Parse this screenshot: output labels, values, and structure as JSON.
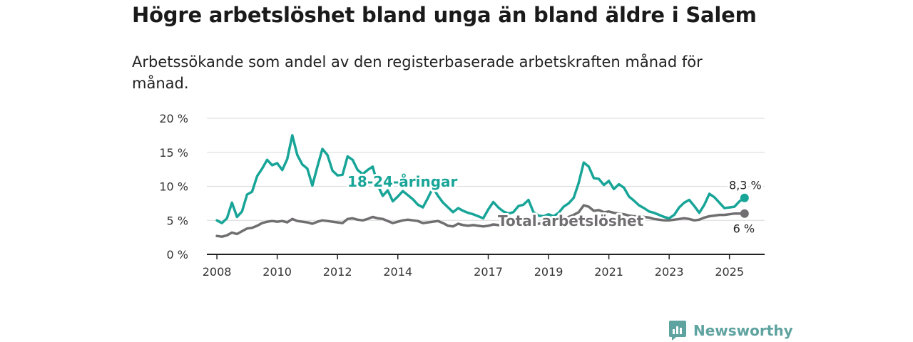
{
  "title": "Högre arbetslöshet bland unga än bland äldre i Salem",
  "subtitle": "Arbetssökande som andel av den registerbaserade arbetskraften månad för månad.",
  "brand": {
    "name": "Newsworthy",
    "icon": "newsworthy-logo-icon",
    "color": "#5fa3a0"
  },
  "chart_data": {
    "type": "line",
    "y_ticks": [
      "0 %",
      "5 %",
      "10 %",
      "15 %",
      "20 %"
    ],
    "ylim": [
      0,
      20
    ],
    "x_ticks": [
      "2008",
      "2010",
      "2012",
      "2014",
      "2017",
      "2019",
      "2021",
      "2023",
      "2025"
    ],
    "xlim": [
      "2007-09",
      "2026-03"
    ],
    "grid": true,
    "series": [
      {
        "name": "18-24-åringar",
        "color": "#18a598",
        "end_label": "8,3 %",
        "x": [
          "2008-01",
          "2008-03",
          "2008-05",
          "2008-07",
          "2008-09",
          "2008-11",
          "2009-01",
          "2009-03",
          "2009-05",
          "2009-07",
          "2009-09",
          "2009-11",
          "2010-01",
          "2010-03",
          "2010-05",
          "2010-07",
          "2010-09",
          "2010-11",
          "2011-01",
          "2011-03",
          "2011-05",
          "2011-07",
          "2011-09",
          "2011-11",
          "2012-01",
          "2012-03",
          "2012-05",
          "2012-07",
          "2012-09",
          "2012-11",
          "2013-01",
          "2013-03",
          "2013-05",
          "2013-07",
          "2013-09",
          "2013-11",
          "2014-01",
          "2014-03",
          "2014-05",
          "2014-07",
          "2014-09",
          "2014-11",
          "2015-01",
          "2015-03",
          "2015-05",
          "2015-07",
          "2015-09",
          "2015-11",
          "2016-01",
          "2016-03",
          "2016-05",
          "2016-07",
          "2016-09",
          "2016-11",
          "2017-01",
          "2017-03",
          "2017-05",
          "2017-07",
          "2017-09",
          "2017-11",
          "2018-01",
          "2018-03",
          "2018-05",
          "2018-07",
          "2018-09",
          "2018-11",
          "2019-01",
          "2019-03",
          "2019-05",
          "2019-07",
          "2019-09",
          "2019-11",
          "2020-01",
          "2020-03",
          "2020-05",
          "2020-07",
          "2020-09",
          "2020-11",
          "2021-01",
          "2021-03",
          "2021-05",
          "2021-07",
          "2021-09",
          "2021-11",
          "2022-01",
          "2022-03",
          "2022-05",
          "2022-07",
          "2022-09",
          "2022-11",
          "2023-01",
          "2023-03",
          "2023-05",
          "2023-07",
          "2023-09",
          "2023-11",
          "2024-01",
          "2024-03",
          "2024-05",
          "2024-07",
          "2024-09",
          "2024-11",
          "2025-01",
          "2025-03",
          "2025-05",
          "2025-07"
        ],
        "y": [
          5.0,
          4.6,
          5.3,
          7.6,
          5.5,
          6.3,
          8.8,
          9.2,
          11.5,
          12.6,
          13.9,
          13.1,
          13.4,
          12.4,
          14.0,
          17.5,
          14.6,
          13.2,
          12.6,
          10.1,
          12.9,
          15.5,
          14.6,
          12.3,
          11.6,
          11.7,
          14.4,
          13.9,
          12.4,
          11.8,
          12.4,
          12.9,
          10.2,
          8.6,
          9.4,
          7.8,
          8.5,
          9.3,
          8.7,
          8.1,
          7.3,
          6.9,
          8.3,
          9.8,
          8.6,
          7.6,
          6.9,
          6.2,
          6.8,
          6.4,
          6.1,
          5.9,
          5.6,
          5.3,
          6.6,
          7.7,
          6.9,
          6.3,
          6.0,
          6.2,
          7.1,
          7.3,
          8.0,
          6.2,
          5.7,
          5.6,
          5.9,
          5.6,
          6.1,
          7.0,
          7.5,
          8.3,
          10.5,
          13.5,
          12.9,
          11.2,
          11.1,
          10.2,
          10.8,
          9.6,
          10.3,
          9.8,
          8.5,
          7.9,
          7.2,
          6.8,
          6.3,
          6.1,
          5.8,
          5.5,
          5.3,
          5.8,
          6.9,
          7.6,
          8.0,
          7.1,
          6.1,
          7.3,
          8.9,
          8.4,
          7.6,
          6.8,
          6.9,
          7.0,
          7.8,
          8.3
        ]
      },
      {
        "name": "Total arbetslöshet",
        "color": "#706e70",
        "end_label": "6 %",
        "x": [
          "2008-01",
          "2008-03",
          "2008-05",
          "2008-07",
          "2008-09",
          "2008-11",
          "2009-01",
          "2009-03",
          "2009-05",
          "2009-07",
          "2009-09",
          "2009-11",
          "2010-01",
          "2010-03",
          "2010-05",
          "2010-07",
          "2010-09",
          "2010-11",
          "2011-01",
          "2011-03",
          "2011-05",
          "2011-07",
          "2011-09",
          "2011-11",
          "2012-01",
          "2012-03",
          "2012-05",
          "2012-07",
          "2012-09",
          "2012-11",
          "2013-01",
          "2013-03",
          "2013-05",
          "2013-07",
          "2013-09",
          "2013-11",
          "2014-01",
          "2014-03",
          "2014-05",
          "2014-07",
          "2014-09",
          "2014-11",
          "2015-01",
          "2015-03",
          "2015-05",
          "2015-07",
          "2015-09",
          "2015-11",
          "2016-01",
          "2016-03",
          "2016-05",
          "2016-07",
          "2016-09",
          "2016-11",
          "2017-01",
          "2017-03",
          "2017-05",
          "2017-07",
          "2017-09",
          "2017-11",
          "2018-01",
          "2018-03",
          "2018-05",
          "2018-07",
          "2018-09",
          "2018-11",
          "2019-01",
          "2019-03",
          "2019-05",
          "2019-07",
          "2019-09",
          "2019-11",
          "2020-01",
          "2020-03",
          "2020-05",
          "2020-07",
          "2020-09",
          "2020-11",
          "2021-01",
          "2021-03",
          "2021-05",
          "2021-07",
          "2021-09",
          "2021-11",
          "2022-01",
          "2022-03",
          "2022-05",
          "2022-07",
          "2022-09",
          "2022-11",
          "2023-01",
          "2023-03",
          "2023-05",
          "2023-07",
          "2023-09",
          "2023-11",
          "2024-01",
          "2024-03",
          "2024-05",
          "2024-07",
          "2024-09",
          "2024-11",
          "2025-01",
          "2025-03",
          "2025-05",
          "2025-07"
        ],
        "y": [
          2.7,
          2.6,
          2.8,
          3.2,
          3.0,
          3.4,
          3.8,
          3.9,
          4.2,
          4.6,
          4.8,
          4.9,
          4.8,
          4.9,
          4.7,
          5.2,
          4.9,
          4.8,
          4.7,
          4.5,
          4.8,
          5.0,
          4.9,
          4.8,
          4.7,
          4.6,
          5.2,
          5.3,
          5.1,
          5.0,
          5.2,
          5.5,
          5.3,
          5.2,
          4.9,
          4.6,
          4.8,
          5.0,
          5.1,
          5.0,
          4.9,
          4.6,
          4.7,
          4.8,
          4.9,
          4.6,
          4.2,
          4.1,
          4.5,
          4.3,
          4.2,
          4.3,
          4.2,
          4.1,
          4.2,
          4.4,
          4.3,
          4.2,
          4.2,
          4.3,
          4.5,
          4.4,
          4.6,
          4.4,
          4.5,
          4.6,
          4.7,
          4.8,
          5.0,
          5.3,
          5.5,
          5.8,
          6.2,
          7.2,
          7.0,
          6.4,
          6.5,
          6.2,
          6.3,
          6.1,
          6.0,
          5.9,
          5.7,
          5.6,
          5.6,
          5.5,
          5.4,
          5.2,
          5.1,
          5.0,
          5.0,
          5.1,
          5.2,
          5.3,
          5.2,
          5.0,
          5.1,
          5.4,
          5.6,
          5.7,
          5.8,
          5.8,
          5.9,
          6.0,
          6.0,
          6.0
        ]
      }
    ],
    "series_labels": [
      "18-24-åringar",
      "Total arbetslöshet"
    ]
  }
}
